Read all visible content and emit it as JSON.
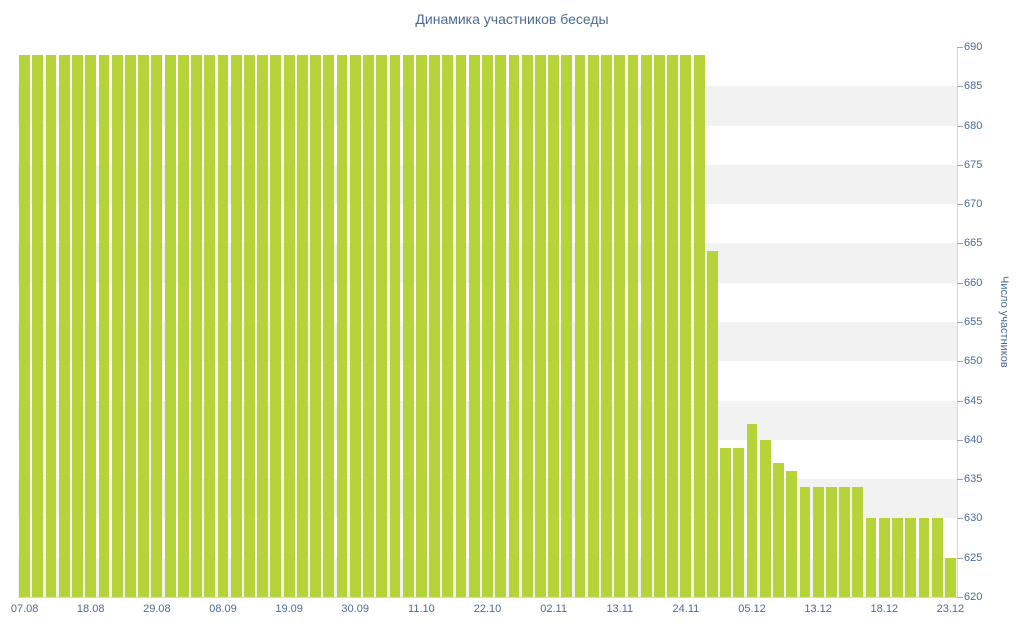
{
  "chart": {
    "colors": {
      "bar": "#b4d43a",
      "text": "#4d6b93",
      "band": "#f2f2f2",
      "axis_line": "#d3d9e4",
      "tick": "#9aa6bd"
    }
  },
  "chart_data": {
    "type": "bar",
    "title": "Динамика участников беседы",
    "xlabel": "",
    "ylabel": "Число участников",
    "ylim": [
      620,
      690
    ],
    "grid": "alternating-horizontal-bands",
    "legend": "none",
    "y_ticks": [
      690,
      685,
      680,
      675,
      670,
      665,
      660,
      655,
      650,
      645,
      640,
      635,
      630,
      625,
      620
    ],
    "x_ticks": [
      {
        "index": 0,
        "label": "07.08"
      },
      {
        "index": 5,
        "label": "18.08"
      },
      {
        "index": 10,
        "label": "29.08"
      },
      {
        "index": 15,
        "label": "08.09"
      },
      {
        "index": 20,
        "label": "19.09"
      },
      {
        "index": 25,
        "label": "30.09"
      },
      {
        "index": 30,
        "label": "11.10"
      },
      {
        "index": 35,
        "label": "22.10"
      },
      {
        "index": 40,
        "label": "02.11"
      },
      {
        "index": 45,
        "label": "13.11"
      },
      {
        "index": 50,
        "label": "24.11"
      },
      {
        "index": 55,
        "label": "05.12"
      },
      {
        "index": 60,
        "label": "13.12"
      },
      {
        "index": 65,
        "label": "18.12"
      },
      {
        "index": 70,
        "label": "23.12"
      }
    ],
    "values": [
      689,
      689,
      689,
      689,
      689,
      689,
      689,
      689,
      689,
      689,
      689,
      689,
      689,
      689,
      689,
      689,
      689,
      689,
      689,
      689,
      689,
      689,
      689,
      689,
      689,
      689,
      689,
      689,
      689,
      689,
      689,
      689,
      689,
      689,
      689,
      689,
      689,
      689,
      689,
      689,
      689,
      689,
      689,
      689,
      689,
      689,
      689,
      689,
      689,
      689,
      689,
      689,
      664,
      639,
      639,
      642,
      640,
      637,
      636,
      634,
      634,
      634,
      634,
      634,
      630,
      630,
      630,
      630,
      630,
      630,
      625
    ]
  }
}
